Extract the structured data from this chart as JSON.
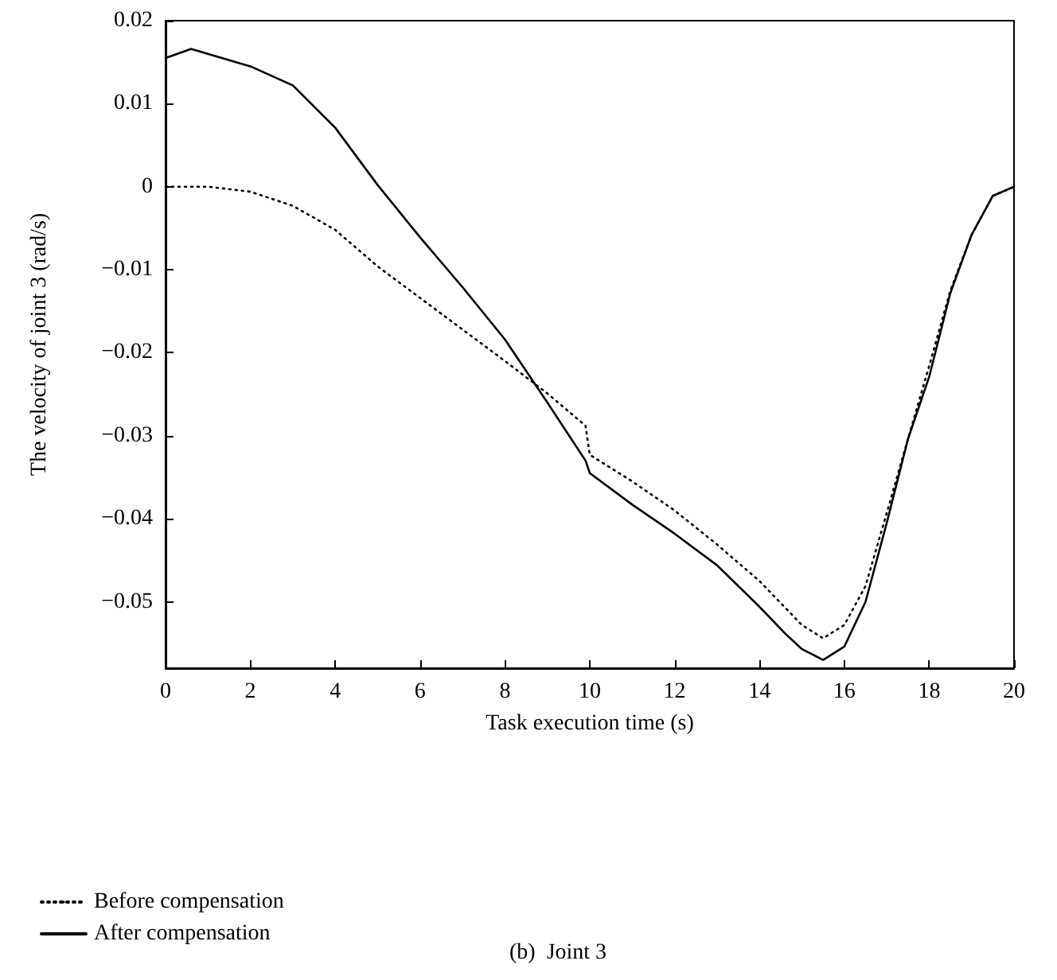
{
  "chart_data": {
    "type": "line",
    "xlabel": "Task execution time (s)",
    "ylabel": "The velocity of joint 3 (rad/s)",
    "xlim": [
      0,
      20
    ],
    "xticks": [
      0,
      2,
      4,
      6,
      8,
      10,
      12,
      14,
      16,
      18,
      20
    ],
    "ylim": [
      -0.058,
      0.02
    ],
    "yticks": [
      -0.05,
      -0.04,
      -0.03,
      -0.02,
      -0.01,
      0,
      0.01,
      0.02
    ],
    "grid": false,
    "legend": "bottom",
    "marker": "none",
    "annotations": [
      "(b)  Joint 3"
    ],
    "series": [
      {
        "name": "Before compensation",
        "color": "#000000",
        "line_style": "dotted",
        "x": [
          0,
          1,
          2,
          3,
          4,
          5,
          6,
          7,
          8,
          9,
          9.9,
          10,
          11,
          12,
          13,
          14,
          15,
          15.5,
          16,
          16.5,
          17,
          17.5,
          18,
          18.5,
          19,
          19.5,
          20
        ],
        "values": [
          0,
          0,
          -0.0006,
          -0.0023,
          -0.0052,
          -0.0096,
          -0.0134,
          -0.0172,
          -0.021,
          -0.0249,
          -0.0288,
          -0.0323,
          -0.0355,
          -0.039,
          -0.0431,
          -0.0475,
          -0.0528,
          -0.0544,
          -0.0528,
          -0.0481,
          -0.0393,
          -0.0304,
          -0.0216,
          -0.0125,
          -0.0058,
          -0.0011,
          0
        ]
      },
      {
        "name": "After compensation",
        "color": "#000000",
        "line_style": "solid",
        "x": [
          0,
          0.6,
          2,
          3,
          4,
          5,
          6,
          7,
          8,
          9,
          9.9,
          10,
          11,
          12,
          13,
          14,
          14.6,
          15,
          15.5,
          16,
          16.5,
          17,
          17.5,
          18,
          18.5,
          19,
          19.5,
          20
        ],
        "values": [
          0.0155,
          0.0166,
          0.0145,
          0.0122,
          0.0071,
          0.0002,
          -0.0061,
          -0.0121,
          -0.0184,
          -0.026,
          -0.033,
          -0.0345,
          -0.0383,
          -0.0418,
          -0.0456,
          -0.0506,
          -0.0538,
          -0.0557,
          -0.057,
          -0.0554,
          -0.05,
          -0.0405,
          -0.0304,
          -0.0229,
          -0.0128,
          -0.0058,
          -0.0011,
          0
        ]
      }
    ]
  }
}
